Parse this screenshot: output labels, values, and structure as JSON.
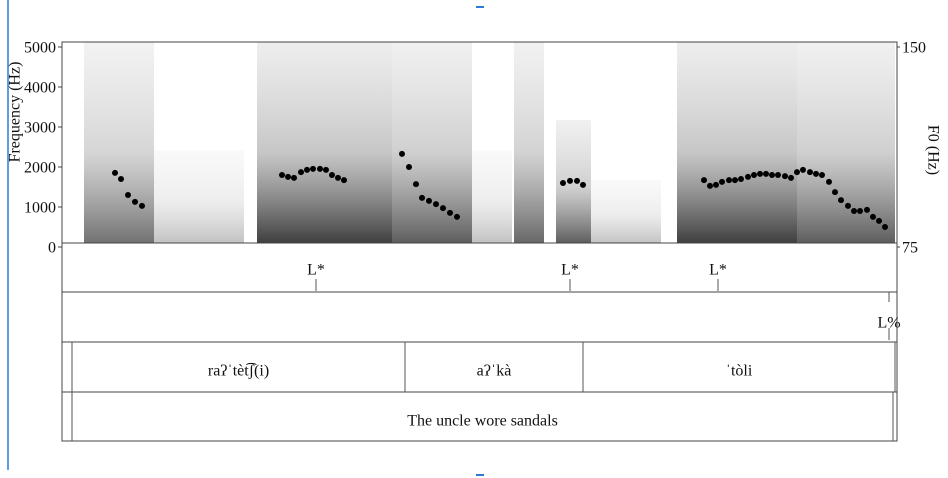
{
  "chart_data": {
    "type": "scatter",
    "ylabel": "Frequency (Hz)",
    "y2label": "F0 (Hz)",
    "xlim": [
      0,
      1.67
    ],
    "ylim": [
      0,
      5000
    ],
    "yticks": [
      0,
      1000,
      2000,
      3000,
      4000,
      5000
    ],
    "y2lim": [
      75,
      150
    ],
    "y2ticks": [
      75,
      150
    ],
    "series": [
      {
        "color": "#000000",
        "axis": "y2",
        "x": [
          0.106,
          0.118,
          0.132,
          0.146,
          0.16,
          0.44,
          0.452,
          0.464,
          0.478,
          0.49,
          0.502,
          0.516,
          0.528,
          0.54,
          0.552,
          0.564,
          0.68,
          0.694,
          0.708,
          0.72,
          0.734,
          0.748,
          0.762,
          0.776,
          0.79,
          1.002,
          1.016,
          1.03,
          1.042,
          1.284,
          1.296,
          1.308,
          1.32,
          1.334,
          1.346,
          1.358,
          1.372,
          1.384,
          1.396,
          1.408,
          1.42,
          1.432,
          1.446,
          1.458,
          1.47,
          1.482,
          1.496,
          1.508,
          1.52,
          1.534,
          1.546,
          1.558,
          1.572,
          1.584,
          1.596,
          1.61,
          1.622,
          1.634,
          1.646
        ],
        "values": [
          102.8,
          100.5,
          94.5,
          91.9,
          90.4,
          102,
          101.3,
          100.9,
          103.1,
          103.9,
          104.3,
          104.3,
          103.9,
          102,
          100.9,
          100.1,
          109.9,
          105,
          98.6,
          93.4,
          92.3,
          91.1,
          89.6,
          87.8,
          86.3,
          99,
          99.8,
          99.8,
          98.3,
          100.1,
          97.9,
          98.3,
          99.4,
          100.1,
          100.1,
          100.5,
          101.3,
          102,
          102.4,
          102.4,
          102,
          102,
          101.6,
          100.9,
          103.1,
          103.9,
          103.1,
          102.4,
          102,
          99.4,
          95.6,
          92.6,
          90.4,
          88.5,
          88.5,
          88.9,
          86.3,
          84.8,
          82.5
        ]
      }
    ],
    "tiers": [
      {
        "points": [
          {
            "time": 0.508,
            "label": "L*"
          },
          {
            "time": 1.016,
            "label": "L*"
          },
          {
            "time": 1.312,
            "label": "L*"
          }
        ]
      },
      {
        "points": [
          {
            "time": 1.654,
            "label": "L%"
          }
        ]
      },
      {
        "intervals": [
          {
            "start": 0.02,
            "end": 0.686,
            "label": "raʔˈtèt͡ʃ(i)"
          },
          {
            "start": 0.686,
            "end": 1.042,
            "label": "aʔˈkà"
          },
          {
            "start": 1.042,
            "end": 1.666,
            "label": "ˈtòli"
          }
        ]
      },
      {
        "intervals": [
          {
            "start": 0.02,
            "end": 1.662,
            "label": "The uncle wore sandals"
          }
        ]
      }
    ]
  }
}
